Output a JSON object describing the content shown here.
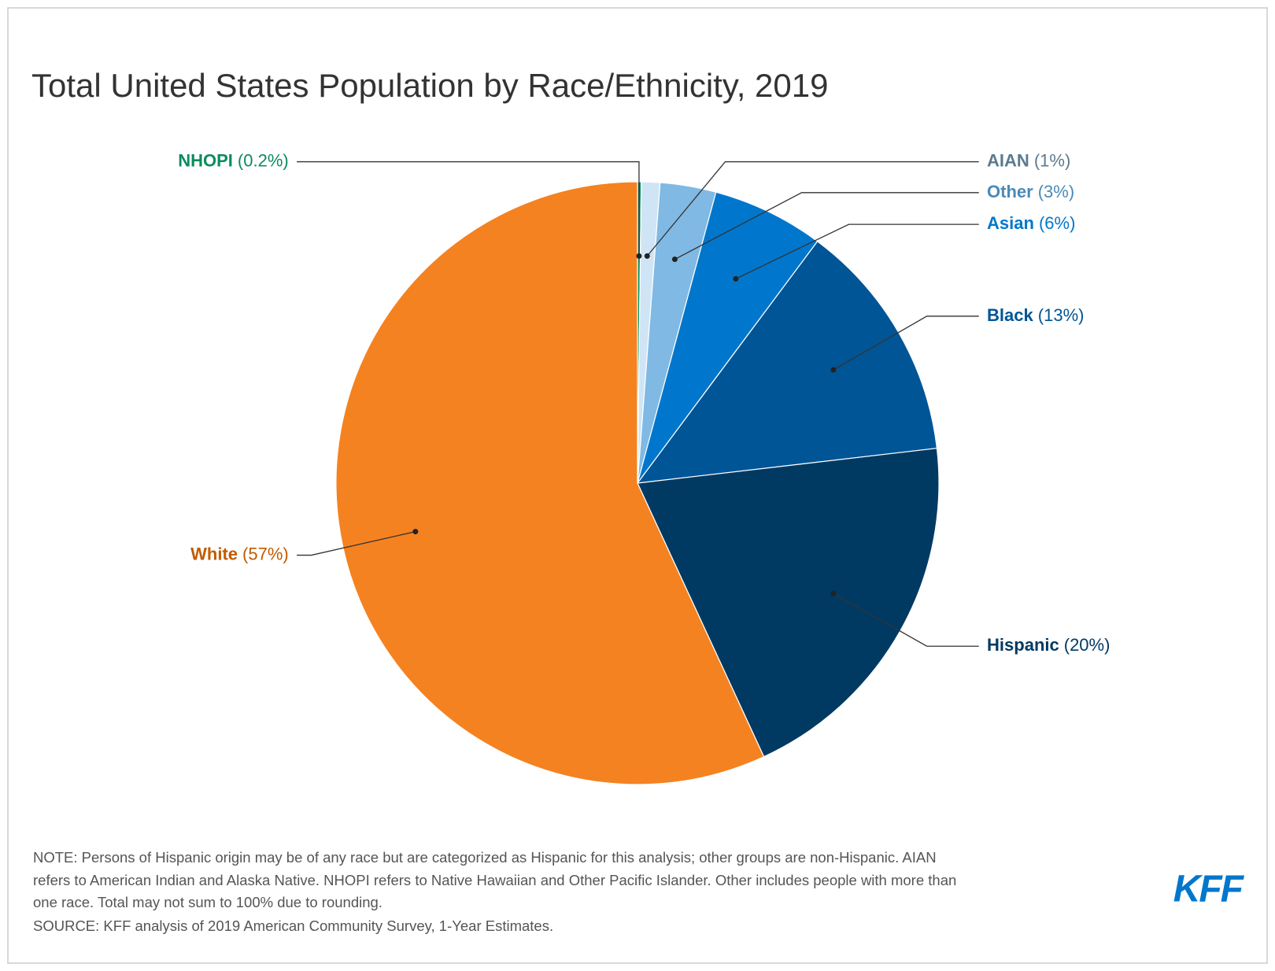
{
  "chart_data": {
    "type": "pie",
    "title": "Total United States Population by Race/Ethnicity, 2019",
    "categories": [
      "NHOPI",
      "AIAN",
      "Other",
      "Asian",
      "Black",
      "Hispanic",
      "White"
    ],
    "values": [
      0.2,
      1,
      3,
      6,
      13,
      20,
      57
    ],
    "value_labels": [
      "(0.2%)",
      "(1%)",
      "(3%)",
      "(6%)",
      "(13%)",
      "(20%)",
      "(57%)"
    ],
    "colors": [
      "#0b8c5c",
      "#cfe5f6",
      "#80b9e3",
      "#0077cc",
      "#005596",
      "#003a63",
      "#f58220"
    ],
    "label_colors": [
      "#0b8c5c",
      "#5b7a8f",
      "#4a8ab8",
      "#0077cc",
      "#005596",
      "#003a63",
      "#c25b00"
    ],
    "note": [
      "NOTE: Persons of Hispanic origin may be of any race but are categorized as Hispanic for this analysis; other groups are non-Hispanic. AIAN",
      "refers to American Indian and Alaska Native. NHOPI refers to Native Hawaiian and Other Pacific Islander. Other includes people with more than",
      "one race. Total may not sum to 100% due to rounding."
    ],
    "source": "SOURCE: KFF analysis of 2019 American Community Survey, 1-Year Estimates.",
    "logo": "KFF"
  }
}
